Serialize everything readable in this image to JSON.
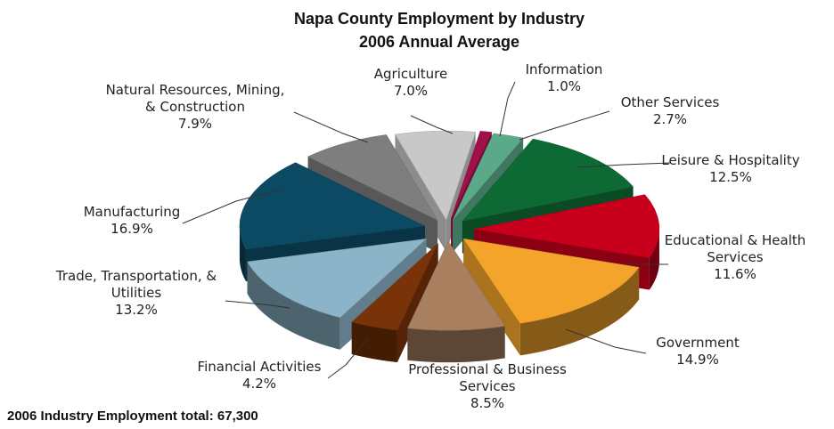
{
  "chart_data": {
    "type": "pie",
    "title": "Napa County Employment by Industry",
    "subtitle": "2006 Annual Average",
    "unit": "%",
    "slices": [
      {
        "label": "Agriculture",
        "value": 7.0,
        "color": "#c8c8c8"
      },
      {
        "label": "Information",
        "value": 1.0,
        "color": "#a0104a"
      },
      {
        "label": "Other Services",
        "value": 2.7,
        "color": "#5aaa8a"
      },
      {
        "label": "Leisure & Hospitality",
        "value": 12.5,
        "color": "#0e6a34"
      },
      {
        "label": "Educational & Health Services",
        "value": 11.6,
        "color": "#c8001c"
      },
      {
        "label": "Government",
        "value": 14.9,
        "color": "#f4a42a"
      },
      {
        "label": "Professional & Business Services",
        "value": 8.5,
        "color": "#a88060"
      },
      {
        "label": "Financial Activities",
        "value": 4.2,
        "color": "#7a3208"
      },
      {
        "label": "Trade, Transportation, & Utilities",
        "value": 13.2,
        "color": "#8cb4c8"
      },
      {
        "label": "Manufacturing",
        "value": 16.9,
        "color": "#0c4a64"
      },
      {
        "label": "Natural Resources, Mining, & Construction",
        "value": 7.9,
        "color": "#7e7e7e"
      }
    ]
  },
  "labels": [
    {
      "lines": [
        "Agriculture",
        "7.0%"
      ]
    },
    {
      "lines": [
        "Information",
        "1.0%"
      ]
    },
    {
      "lines": [
        "Other Services",
        "2.7%"
      ]
    },
    {
      "lines": [
        "Leisure & Hospitality",
        "12.5%"
      ]
    },
    {
      "lines": [
        "Educational & Health",
        "Services",
        "11.6%"
      ]
    },
    {
      "lines": [
        "Government",
        "14.9%"
      ]
    },
    {
      "lines": [
        "Professional & Business",
        "Services",
        "8.5%"
      ]
    },
    {
      "lines": [
        "Financial Activities",
        "4.2%"
      ]
    },
    {
      "lines": [
        "Trade, Transportation, &",
        "Utilities",
        "13.2%"
      ]
    },
    {
      "lines": [
        "Manufacturing",
        "16.9%"
      ]
    },
    {
      "lines": [
        "Natural Resources, Mining,",
        "& Construction",
        "7.9%"
      ]
    }
  ],
  "footer": "2006 Industry Employment total: 67,300"
}
